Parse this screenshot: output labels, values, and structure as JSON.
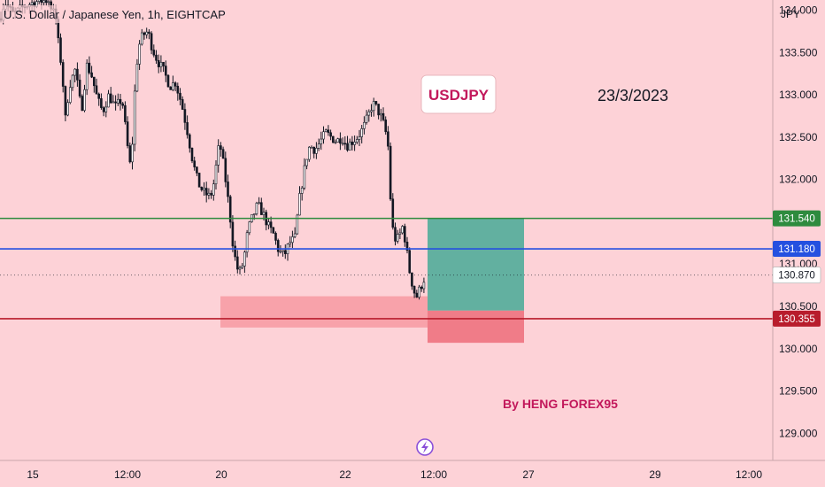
{
  "header": {
    "title": "U.S. Dollar / Japanese Yen, 1h, EIGHTCAP",
    "currency": "JPY"
  },
  "annotations": {
    "symbol_label": "USDJPY",
    "date_label": "23/3/2023",
    "author_label": "By HENG FOREX95"
  },
  "colors": {
    "background": "#fdd2d7",
    "candle": "#131722",
    "green_line": "#2e8b3e",
    "blue_line": "#2450e0",
    "red_line": "#b81c2c",
    "take_profit_zone": "#62b0a0",
    "stop_loss_zone": "#f07c88",
    "demand_zone": "#f79aa2",
    "symbol_text": "#c2185b",
    "author_text": "#c2185b"
  },
  "chart_data": {
    "type": "candlestick",
    "title": "U.S. Dollar / Japanese Yen, 1h, EIGHTCAP",
    "ylabel": "JPY",
    "ylim": [
      128.68,
      134.12
    ],
    "y_ticks": [
      "134.000",
      "133.500",
      "133.000",
      "132.500",
      "132.000",
      "131.500",
      "131.000",
      "130.500",
      "130.000",
      "129.500",
      "129.000"
    ],
    "x_ticks": [
      "15",
      "12:00",
      "20",
      "22",
      "12:00",
      "27",
      "29",
      "12:00"
    ],
    "price_lines": [
      {
        "name": "green-line",
        "value": 131.54,
        "label": "131.540",
        "color": "#2e8b3e"
      },
      {
        "name": "blue-line",
        "value": 131.18,
        "label": "131.180",
        "color": "#2450e0"
      },
      {
        "name": "red-line",
        "value": 130.355,
        "label": "130.355",
        "color": "#b81c2c"
      }
    ],
    "current_price": {
      "value": 130.87,
      "label": "130.870"
    },
    "zones": [
      {
        "name": "take-profit-zone",
        "from": 130.45,
        "to": 131.54
      },
      {
        "name": "stop-loss-zone",
        "from": 130.07,
        "to": 130.45
      },
      {
        "name": "demand-zone",
        "from": 130.25,
        "to": 130.62
      }
    ],
    "price_path": [
      [
        0,
        133.9
      ],
      [
        5,
        134.1
      ],
      [
        15,
        133.95
      ],
      [
        28,
        134.05
      ],
      [
        40,
        134.1
      ],
      [
        55,
        134.12
      ],
      [
        63,
        133.9
      ],
      [
        66,
        133.6
      ],
      [
        70,
        133.3
      ],
      [
        74,
        132.7
      ],
      [
        78,
        133.1
      ],
      [
        85,
        133.3
      ],
      [
        92,
        132.8
      ],
      [
        98,
        133.35
      ],
      [
        103,
        133.25
      ],
      [
        110,
        132.95
      ],
      [
        116,
        132.8
      ],
      [
        123,
        133.0
      ],
      [
        130,
        132.85
      ],
      [
        138,
        132.95
      ],
      [
        145,
        132.3
      ],
      [
        148,
        132.1
      ],
      [
        152,
        133.0
      ],
      [
        156,
        133.55
      ],
      [
        161,
        133.7
      ],
      [
        167,
        133.75
      ],
      [
        172,
        133.55
      ],
      [
        178,
        133.4
      ],
      [
        184,
        133.3
      ],
      [
        192,
        133.1
      ],
      [
        198,
        133.15
      ],
      [
        205,
        132.9
      ],
      [
        212,
        132.55
      ],
      [
        218,
        132.2
      ],
      [
        224,
        131.95
      ],
      [
        230,
        131.85
      ],
      [
        236,
        131.8
      ],
      [
        240,
        131.85
      ],
      [
        244,
        132.15
      ],
      [
        248,
        132.45
      ],
      [
        252,
        132.2
      ],
      [
        256,
        131.9
      ],
      [
        260,
        131.55
      ],
      [
        264,
        131.15
      ],
      [
        268,
        130.95
      ],
      [
        272,
        130.9
      ],
      [
        276,
        131.1
      ],
      [
        280,
        131.4
      ],
      [
        285,
        131.55
      ],
      [
        291,
        131.7
      ],
      [
        297,
        131.6
      ],
      [
        303,
        131.45
      ],
      [
        309,
        131.35
      ],
      [
        315,
        131.15
      ],
      [
        321,
        131.1
      ],
      [
        327,
        131.25
      ],
      [
        333,
        131.3
      ],
      [
        338,
        131.75
      ],
      [
        342,
        132.0
      ],
      [
        346,
        132.25
      ],
      [
        350,
        132.4
      ],
      [
        356,
        132.35
      ],
      [
        362,
        132.45
      ],
      [
        368,
        132.55
      ],
      [
        374,
        132.5
      ],
      [
        380,
        132.45
      ],
      [
        386,
        132.5
      ],
      [
        392,
        132.4
      ],
      [
        398,
        132.45
      ],
      [
        404,
        132.5
      ],
      [
        410,
        132.6
      ],
      [
        416,
        132.75
      ],
      [
        421,
        132.9
      ],
      [
        425,
        132.85
      ],
      [
        430,
        132.75
      ],
      [
        435,
        132.6
      ],
      [
        439,
        132.35
      ],
      [
        441,
        131.8
      ],
      [
        443,
        131.45
      ],
      [
        446,
        131.3
      ],
      [
        450,
        131.3
      ],
      [
        455,
        131.45
      ],
      [
        459,
        131.2
      ],
      [
        462,
        130.95
      ],
      [
        466,
        130.75
      ],
      [
        470,
        130.6
      ],
      [
        474,
        130.7
      ],
      [
        478,
        130.8
      ],
      [
        481,
        130.87
      ]
    ]
  }
}
